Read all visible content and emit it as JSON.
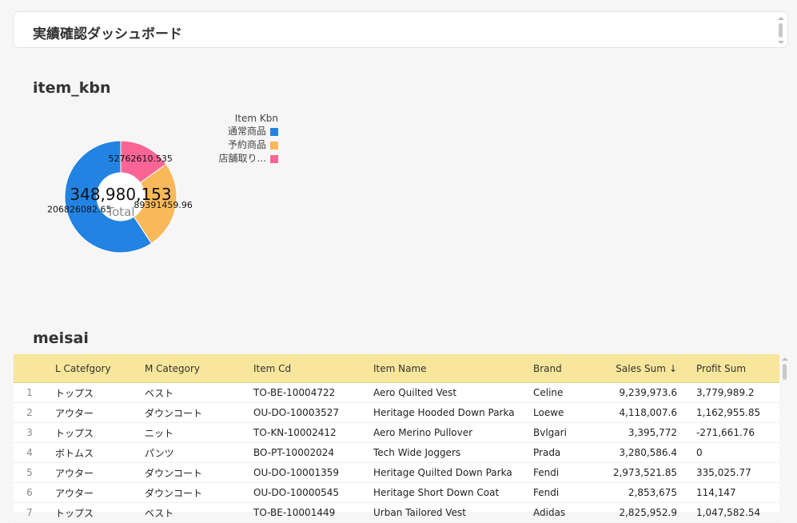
{
  "header": {
    "title": "実績確認ダッシュボード"
  },
  "sections": {
    "item_kbn": "item_kbn",
    "meisai": "meisai"
  },
  "chart_data": {
    "type": "pie",
    "style": "donut",
    "total_value": "348,980,153",
    "total_label": "Total",
    "legend_title": "Item Kbn",
    "legend_position": "top-right",
    "series": [
      {
        "name": "通常商品",
        "value": 206826082.65,
        "label": "206826082.65",
        "color": "#2283e2"
      },
      {
        "name": "予約商品",
        "value": 89391459.96,
        "label": "89391459.96",
        "color": "#f9b85a"
      },
      {
        "name": "店舗取り...",
        "value": 52762610.535,
        "label": "52762610.535",
        "color": "#fb6596"
      }
    ]
  },
  "table": {
    "columns": [
      "",
      "L Catefgory",
      "M Category",
      "Item Cd",
      "Item Name",
      "Brand",
      "Sales Sum",
      "Profit Sum"
    ],
    "sort_column": "Sales Sum",
    "sort_direction": "descending",
    "rows": [
      [
        "1",
        "トップス",
        "ベスト",
        "TO-BE-10004722",
        "Aero Quilted Vest",
        "Celine",
        "9,239,973.6",
        "3,779,989.2"
      ],
      [
        "2",
        "アウター",
        "ダウンコート",
        "OU-DO-10003527",
        "Heritage Hooded Down Parka",
        "Loewe",
        "4,118,007.6",
        "1,162,955.85"
      ],
      [
        "3",
        "トップス",
        "ニット",
        "TO-KN-10002412",
        "Aero Merino Pullover",
        "Bvlgari",
        "3,395,772",
        "-271,661.76"
      ],
      [
        "4",
        "ボトムス",
        "パンツ",
        "BO-PT-10002024",
        "Tech Wide Joggers",
        "Prada",
        "3,280,586.4",
        "0"
      ],
      [
        "5",
        "アウター",
        "ダウンコート",
        "OU-DO-10001359",
        "Heritage Quilted Down Parka",
        "Fendi",
        "2,973,521.85",
        "335,025.77"
      ],
      [
        "6",
        "アウター",
        "ダウンコート",
        "OU-DO-10000545",
        "Heritage Short Down Coat",
        "Fendi",
        "2,853,675",
        "114,147"
      ],
      [
        "7",
        "トップス",
        "ベスト",
        "TO-BE-10001449",
        "Urban Tailored Vest",
        "Adidas",
        "2,825,952.9",
        "1,047,582.54"
      ]
    ]
  }
}
